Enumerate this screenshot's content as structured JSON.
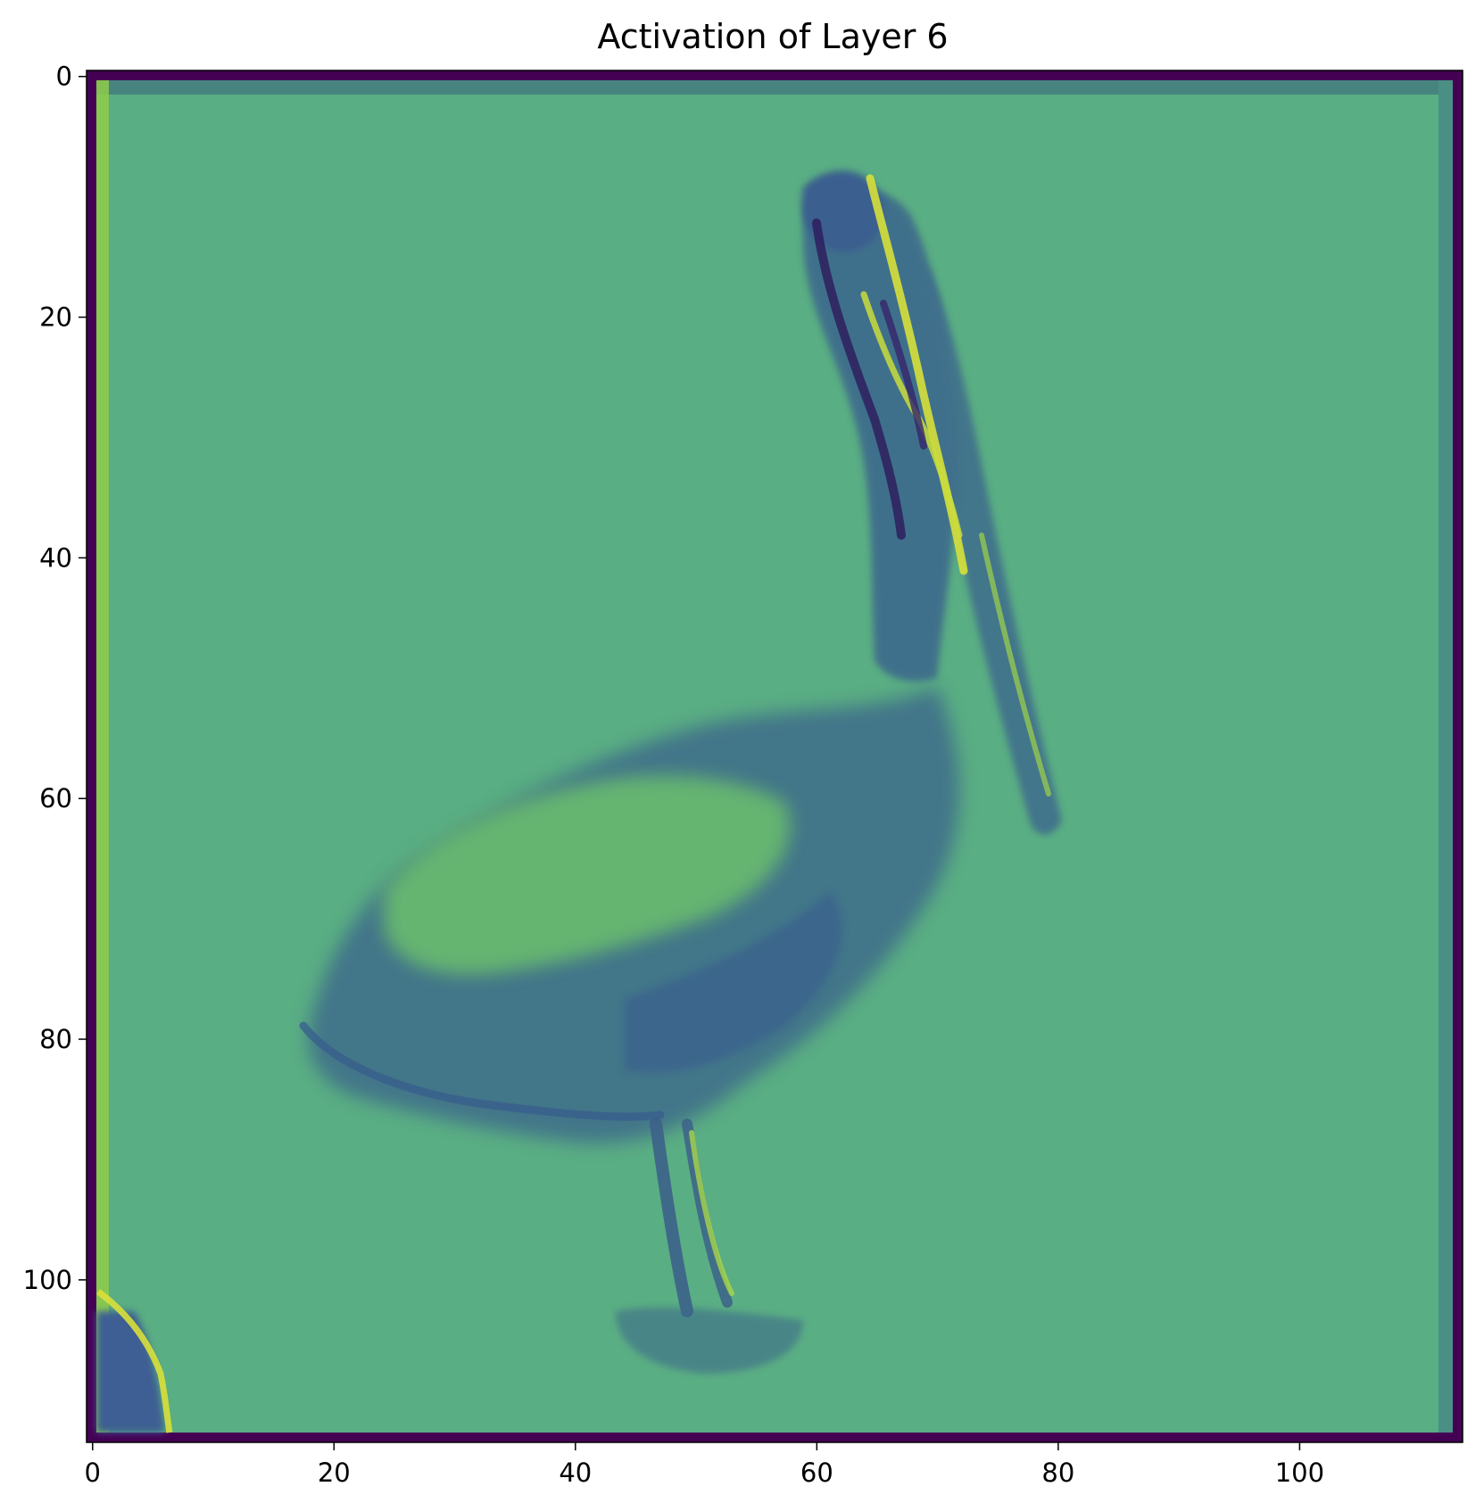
{
  "title": "Activation of Layer 6",
  "colormap": "viridis",
  "image": {
    "rows": 113,
    "cols": 113,
    "extent_x": [
      -0.5,
      113.5
    ],
    "extent_y": [
      113.5,
      -0.5
    ],
    "subject": "pelican"
  },
  "axes": {
    "x_ticks": [
      0,
      20,
      40,
      60,
      80,
      100
    ],
    "y_ticks": [
      0,
      20,
      40,
      60,
      80,
      100
    ]
  },
  "colors": {
    "background_value": "#5aae83",
    "border_value": "#440154",
    "edge_band": "#47837f",
    "dark_region": "#3d6a8c",
    "mid_region": "#4d8f8a",
    "bright_region": "#6cc06d",
    "yellow_edge": "#d7e03a"
  }
}
